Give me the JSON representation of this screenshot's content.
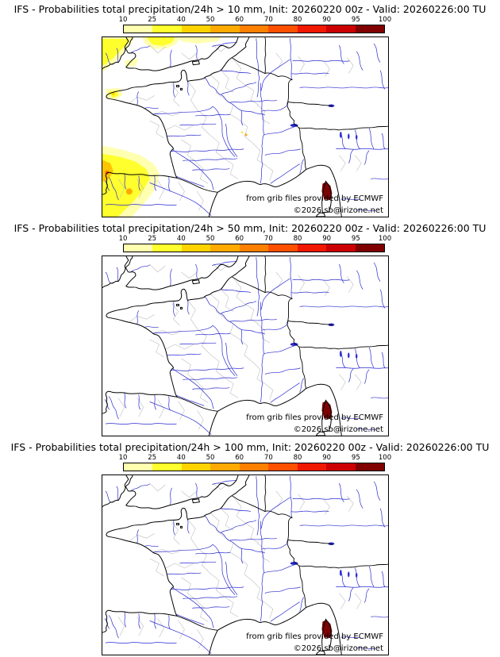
{
  "panels": [
    {
      "title": "IFS - Probabilities total precipitation/24h > 10 mm, Init: 20260220 00z - Valid: 20260226:00 TU",
      "threshold": "10 mm",
      "shows_probability_shading": true
    },
    {
      "title": "IFS - Probabilities total precipitation/24h > 50 mm, Init: 20260220 00z - Valid: 20260226:00 TU",
      "threshold": "50 mm",
      "shows_probability_shading": false
    },
    {
      "title": "IFS - Probabilities total precipitation/24h > 100 mm, Init: 20260220 00z - Valid: 20260226:00 TU",
      "threshold": "100 mm",
      "shows_probability_shading": false
    }
  ],
  "colorbar": {
    "tick_labels": [
      "10",
      "25",
      "40",
      "50",
      "60",
      "70",
      "80",
      "90",
      "95",
      "100"
    ],
    "segment_colors": [
      "#ffffb0",
      "#ffff2e",
      "#ffd300",
      "#ffaa00",
      "#ff8000",
      "#ff5000",
      "#f01800",
      "#cc0000",
      "#800000"
    ]
  },
  "credits": {
    "line1": "from grib files provided by ECMWF",
    "line2": "©2026 sb@irizone.net"
  },
  "map_colors": {
    "coastline": "#000000",
    "rivers": "#2929cf",
    "admin_boundaries": "#b8b8b8",
    "shading_pale_yellow": "#ffffb0",
    "shading_yellow": "#ffff2e",
    "shading_orange": "#ffaa00",
    "corsica_patch": "#7c0303"
  }
}
